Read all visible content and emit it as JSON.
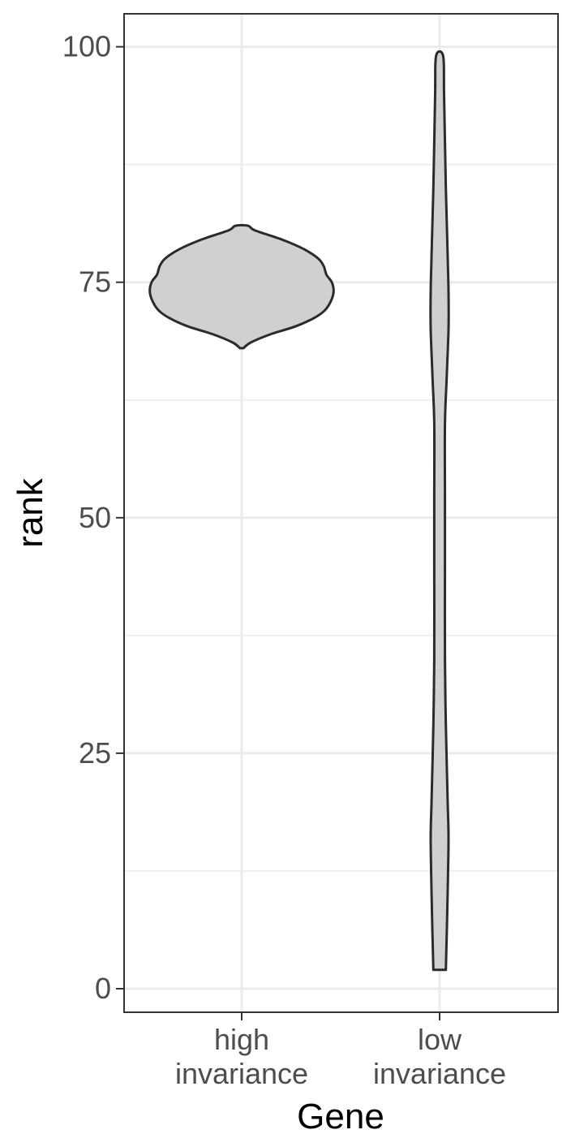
{
  "chart_data": {
    "type": "violin",
    "xlabel": "Gene",
    "ylabel": "rank",
    "ylim": [
      -2.5,
      103.5
    ],
    "yticks": [
      0,
      25,
      50,
      75,
      100
    ],
    "yminor": [
      12.5,
      37.5,
      62.5,
      87.5
    ],
    "grid": true,
    "categories": [
      {
        "name": "high invariance",
        "lines": [
          "high",
          "invariance"
        ]
      },
      {
        "name": "low invariance",
        "lines": [
          "low",
          "invariance"
        ]
      }
    ],
    "violins": [
      {
        "category": "high invariance",
        "range": [
          68,
          81
        ],
        "profile": [
          [
            68,
            0.02
          ],
          [
            68.6,
            0.1
          ],
          [
            69.5,
            0.33
          ],
          [
            70.3,
            0.6
          ],
          [
            71.2,
            0.81
          ],
          [
            72,
            0.93
          ],
          [
            73,
            1.0
          ],
          [
            74,
            1.03
          ],
          [
            75,
            1.01
          ],
          [
            75.8,
            0.95
          ],
          [
            76.7,
            0.92
          ],
          [
            77.5,
            0.86
          ],
          [
            78.5,
            0.7
          ],
          [
            79.5,
            0.46
          ],
          [
            80.5,
            0.15
          ],
          [
            81,
            0.07
          ]
        ]
      },
      {
        "category": "low invariance",
        "range": [
          2,
          99
        ],
        "profile": [
          [
            2,
            0.07
          ],
          [
            10,
            0.09
          ],
          [
            16,
            0.1
          ],
          [
            20,
            0.09
          ],
          [
            28,
            0.07
          ],
          [
            35,
            0.06
          ],
          [
            45,
            0.06
          ],
          [
            52,
            0.06
          ],
          [
            60,
            0.06
          ],
          [
            65,
            0.08
          ],
          [
            70,
            0.1
          ],
          [
            74,
            0.1
          ],
          [
            78,
            0.09
          ],
          [
            85,
            0.07
          ],
          [
            95,
            0.05
          ],
          [
            99,
            0.04
          ]
        ]
      }
    ],
    "colors": {
      "fill": "#d0d0d0",
      "outline": "#2b2b2b",
      "grid": "#ebebeb",
      "panel_border": "#333333"
    }
  }
}
